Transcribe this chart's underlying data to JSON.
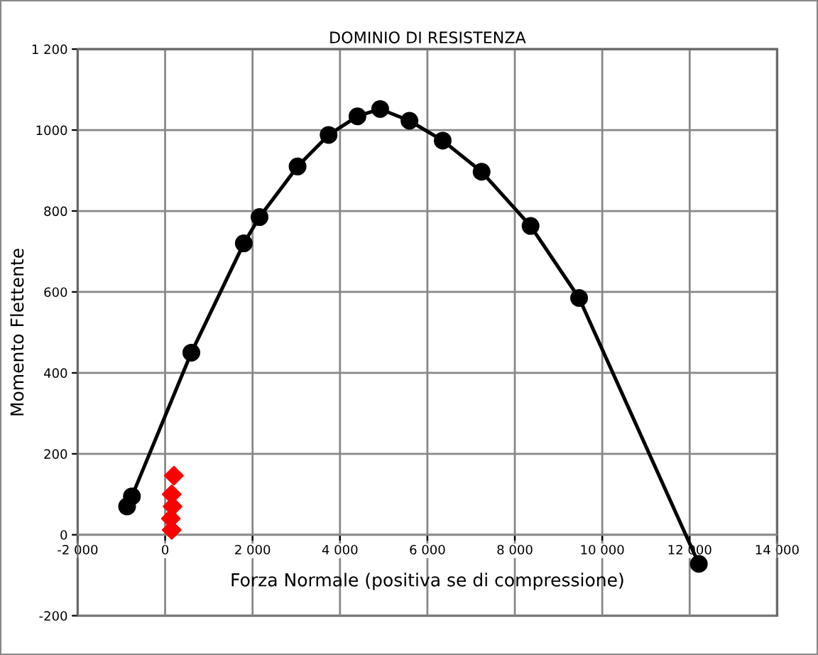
{
  "chart_data": {
    "type": "line",
    "title": "DOMINIO DI RESISTENZA",
    "xlabel": "Forza Normale (positiva se di compressione)",
    "ylabel": "Momento Flettente",
    "xlim": [
      -2000,
      14000
    ],
    "ylim": [
      -200,
      1200
    ],
    "xticks": [
      {
        "value": -2000,
        "label": "-2 000"
      },
      0,
      {
        "value": 2000,
        "label": "2 000"
      },
      {
        "value": 4000,
        "label": "4 000"
      },
      {
        "value": 6000,
        "label": "6 000"
      },
      {
        "value": 8000,
        "label": "8 000"
      },
      {
        "value": 10000,
        "label": "10 000"
      },
      {
        "value": 12000,
        "label": "12 000"
      },
      {
        "value": 14000,
        "label": "14 000"
      }
    ],
    "yticks": [
      -200,
      0,
      200,
      400,
      600,
      800,
      1000,
      {
        "value": 1200,
        "label": "1 200"
      }
    ],
    "grid": true,
    "legend": false,
    "marker": "circle",
    "line_style": "solid",
    "series": [
      {
        "color": "#000000",
        "x": [
          -870,
          -760,
          600,
          1800,
          2160,
          3030,
          3740,
          4400,
          4920,
          5590,
          6350,
          7240,
          8360,
          9470,
          12210
        ],
        "values": [
          70,
          95,
          450,
          720,
          785,
          910,
          988,
          1034,
          1052,
          1023,
          974,
          897,
          763,
          585,
          -72
        ]
      },
      {
        "type": "scatter",
        "marker": "diamond",
        "color": "#ff0000",
        "x": [
          200,
          150,
          170,
          130,
          150
        ],
        "values": [
          146,
          100,
          70,
          40,
          12
        ]
      }
    ]
  }
}
